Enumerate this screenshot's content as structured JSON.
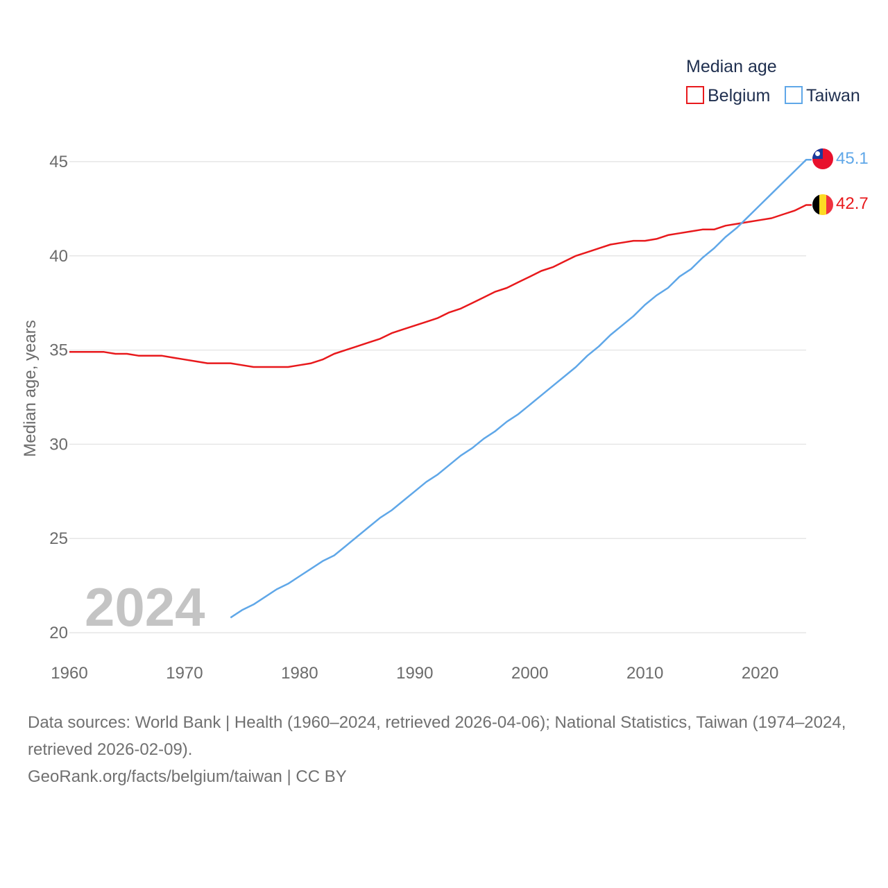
{
  "chart_data": {
    "type": "line",
    "title": "",
    "xlabel": "",
    "ylabel": "Median age, years",
    "xlim": [
      1960,
      2024
    ],
    "ylim": [
      20,
      45
    ],
    "xticks": [
      1960,
      1970,
      1980,
      1990,
      2000,
      2010,
      2020
    ],
    "yticks": [
      20,
      25,
      30,
      35,
      40,
      45
    ],
    "grid": true,
    "legend": {
      "title": "Median age",
      "position": "top-right"
    },
    "year_watermark": "2024",
    "series": [
      {
        "name": "Belgium",
        "color": "#e8191c",
        "end_label": "42.7",
        "x": [
          1960,
          1961,
          1962,
          1963,
          1964,
          1965,
          1966,
          1967,
          1968,
          1969,
          1970,
          1971,
          1972,
          1973,
          1974,
          1975,
          1976,
          1977,
          1978,
          1979,
          1980,
          1981,
          1982,
          1983,
          1984,
          1985,
          1986,
          1987,
          1988,
          1989,
          1990,
          1991,
          1992,
          1993,
          1994,
          1995,
          1996,
          1997,
          1998,
          1999,
          2000,
          2001,
          2002,
          2003,
          2004,
          2005,
          2006,
          2007,
          2008,
          2009,
          2010,
          2011,
          2012,
          2013,
          2014,
          2015,
          2016,
          2017,
          2018,
          2019,
          2020,
          2021,
          2022,
          2023,
          2024
        ],
        "values": [
          34.9,
          34.9,
          34.9,
          34.9,
          34.8,
          34.8,
          34.7,
          34.7,
          34.7,
          34.6,
          34.5,
          34.4,
          34.3,
          34.3,
          34.3,
          34.2,
          34.1,
          34.1,
          34.1,
          34.1,
          34.2,
          34.3,
          34.5,
          34.8,
          35.0,
          35.2,
          35.4,
          35.6,
          35.9,
          36.1,
          36.3,
          36.5,
          36.7,
          37.0,
          37.2,
          37.5,
          37.8,
          38.1,
          38.3,
          38.6,
          38.9,
          39.2,
          39.4,
          39.7,
          40.0,
          40.2,
          40.4,
          40.6,
          40.7,
          40.8,
          40.8,
          40.9,
          41.1,
          41.2,
          41.3,
          41.4,
          41.4,
          41.6,
          41.7,
          41.8,
          41.9,
          42.0,
          42.2,
          42.4,
          42.7
        ]
      },
      {
        "name": "Taiwan",
        "color": "#5fa7e8",
        "end_label": "45.1",
        "x": [
          1974,
          1975,
          1976,
          1977,
          1978,
          1979,
          1980,
          1981,
          1982,
          1983,
          1984,
          1985,
          1986,
          1987,
          1988,
          1989,
          1990,
          1991,
          1992,
          1993,
          1994,
          1995,
          1996,
          1997,
          1998,
          1999,
          2000,
          2001,
          2002,
          2003,
          2004,
          2005,
          2006,
          2007,
          2008,
          2009,
          2010,
          2011,
          2012,
          2013,
          2014,
          2015,
          2016,
          2017,
          2018,
          2019,
          2020,
          2021,
          2022,
          2023,
          2024
        ],
        "values": [
          20.8,
          21.2,
          21.5,
          21.9,
          22.3,
          22.6,
          23.0,
          23.4,
          23.8,
          24.1,
          24.6,
          25.1,
          25.6,
          26.1,
          26.5,
          27.0,
          27.5,
          28.0,
          28.4,
          28.9,
          29.4,
          29.8,
          30.3,
          30.7,
          31.2,
          31.6,
          32.1,
          32.6,
          33.1,
          33.6,
          34.1,
          34.7,
          35.2,
          35.8,
          36.3,
          36.8,
          37.4,
          37.9,
          38.3,
          38.9,
          39.3,
          39.9,
          40.4,
          41.0,
          41.5,
          42.1,
          42.7,
          43.3,
          43.9,
          44.5,
          45.1
        ]
      }
    ]
  },
  "footer": {
    "sources": "Data sources: World Bank | Health (1960–2024, retrieved 2026-04-06); National Statistics, Taiwan (1974–2024, retrieved 2026-02-09).",
    "credit": "GeoRank.org/facts/belgium/taiwan | CC BY"
  }
}
